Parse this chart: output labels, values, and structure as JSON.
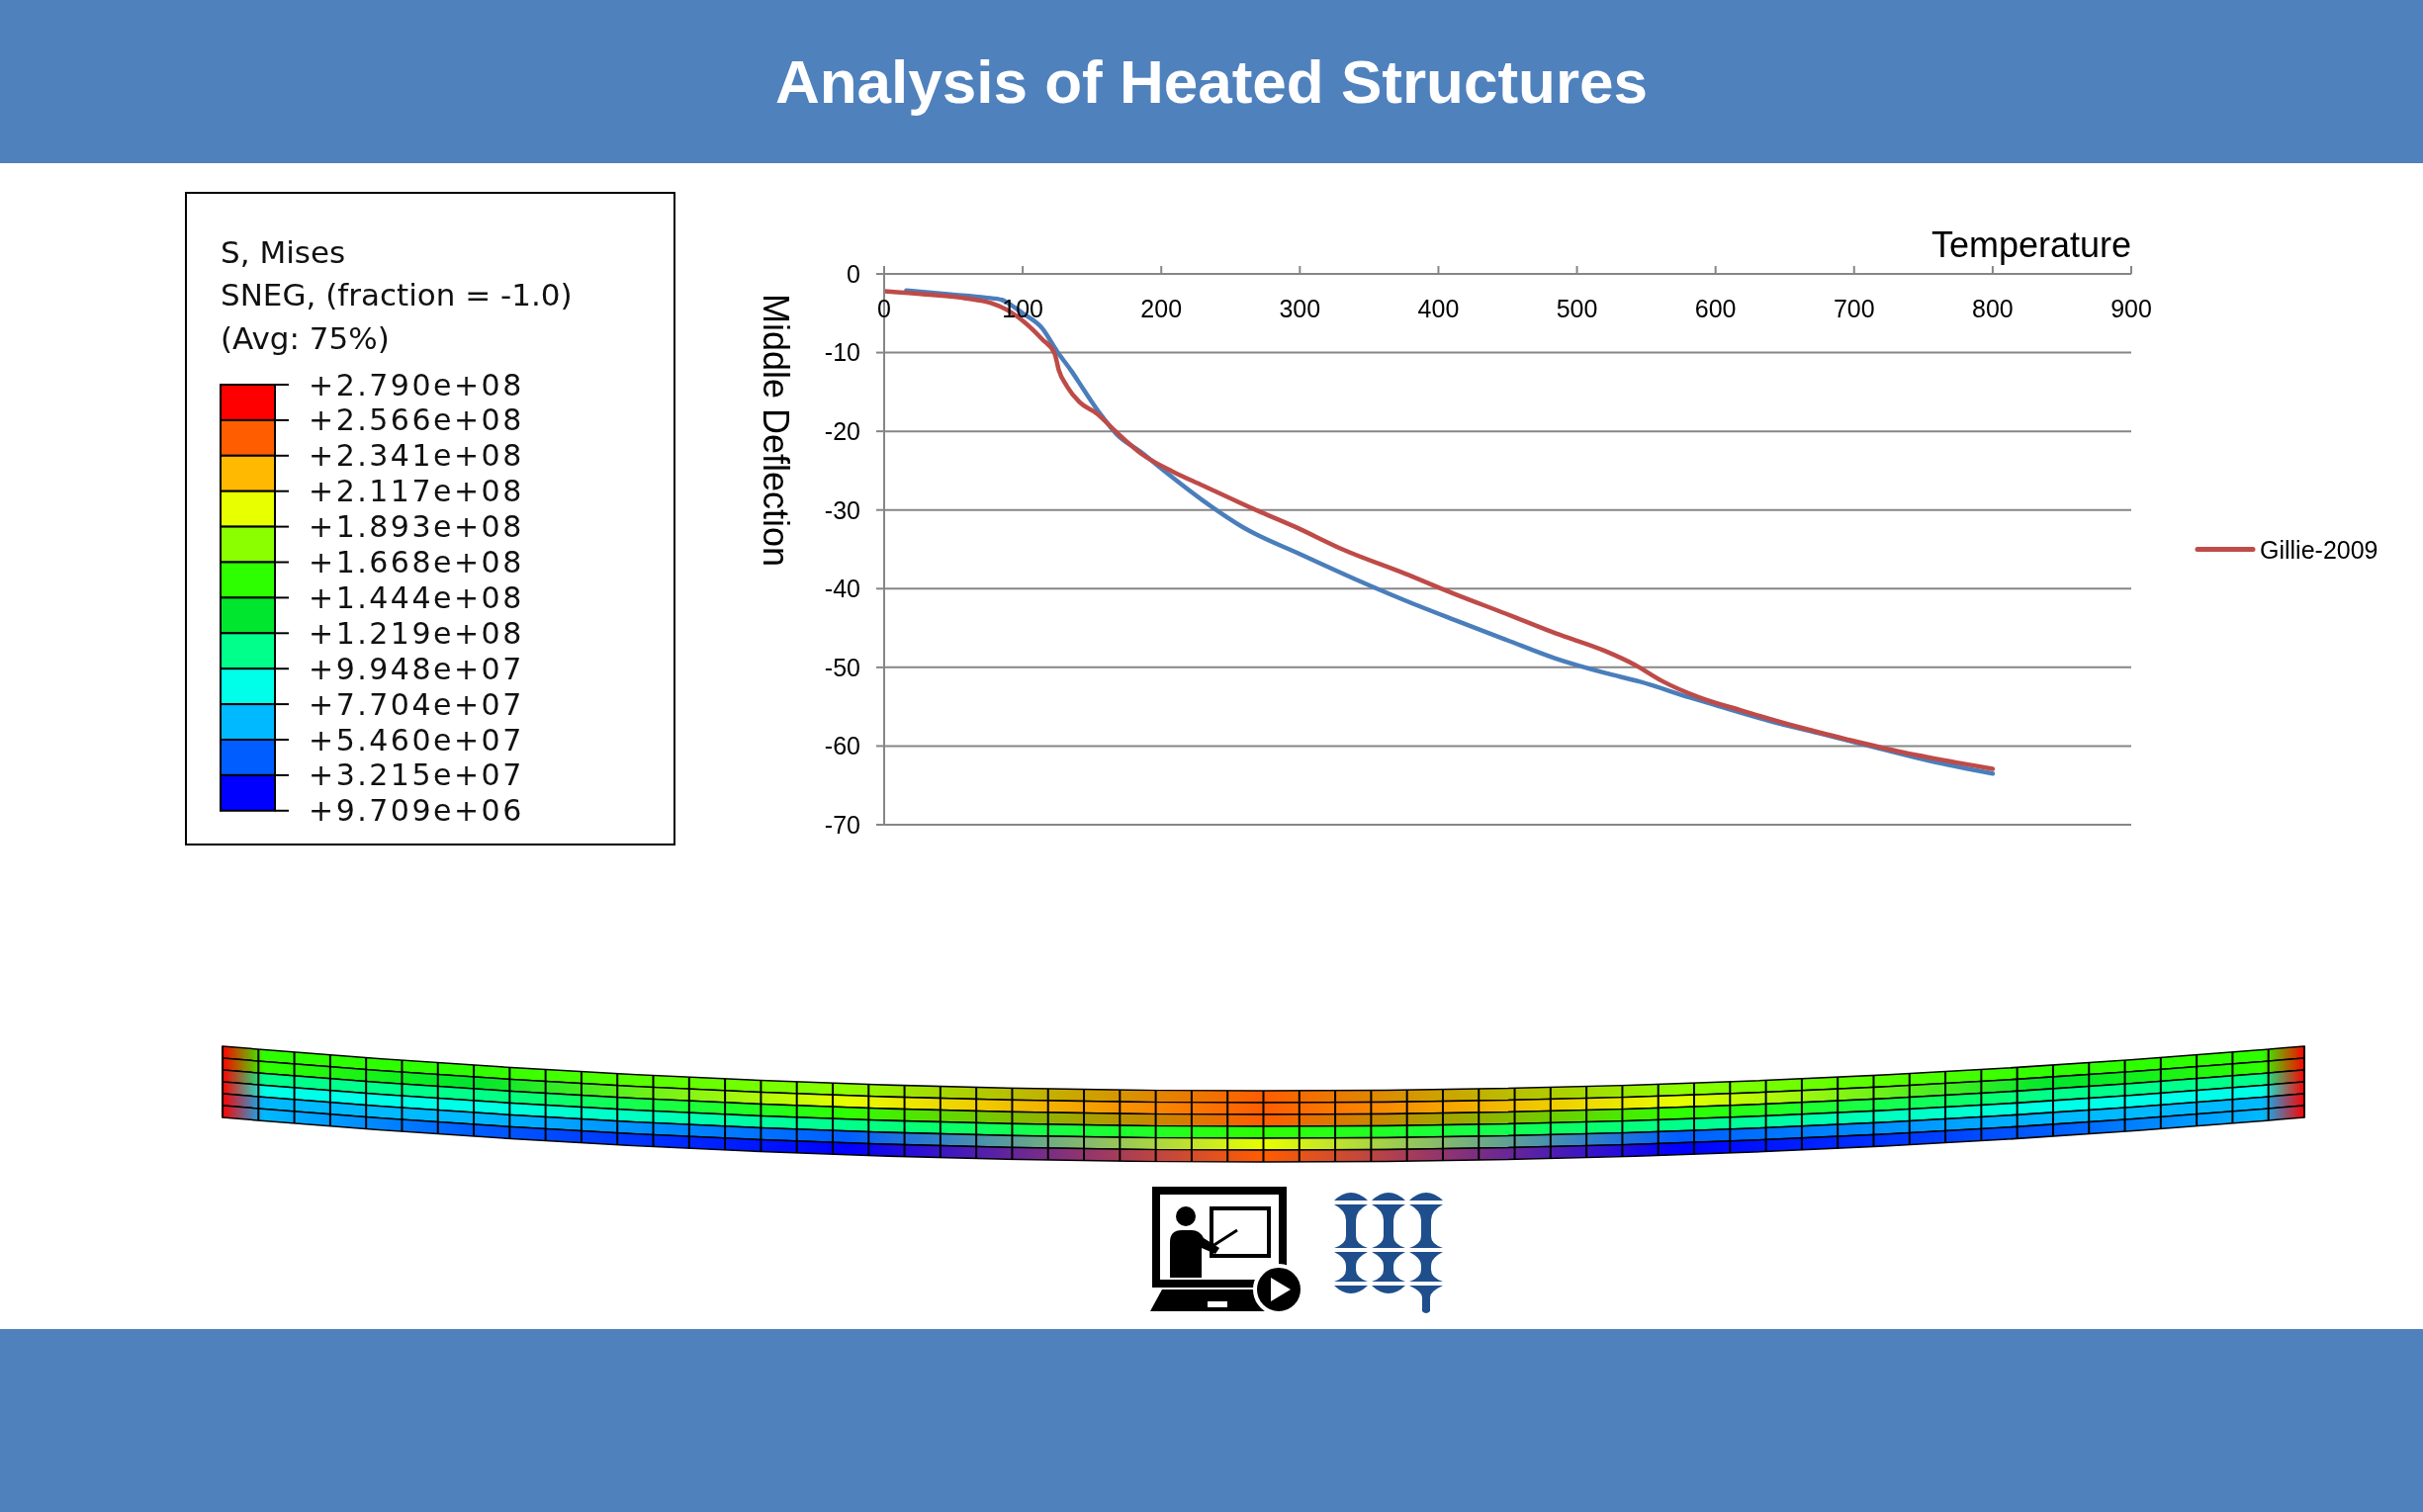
{
  "chart_data": [
    {
      "type": "other",
      "title": "S, Mises",
      "subtitle": "SNEG, (fraction = -1.0)",
      "annotations": [
        "(Avg: 75%)",
        "+2.790e+08",
        "+2.566e+08",
        "+2.341e+08",
        "+2.117e+08",
        "+1.893e+08",
        "+1.668e+08",
        "+1.444e+08",
        "+1.219e+08",
        "+9.948e+07",
        "+7.704e+07",
        "+5.460e+07",
        "+3.215e+07",
        "+9.709e+06"
      ]
    },
    {
      "type": "line",
      "title": "Analysis of Heated Structures",
      "xlabel": "Temperature",
      "ylabel": "Middle Deflection",
      "xlim": [
        0,
        900
      ],
      "ylim": [
        -70,
        0
      ],
      "xticks": [
        0,
        100,
        200,
        300,
        400,
        500,
        600,
        700,
        800,
        900
      ],
      "yticks": [
        0,
        -10,
        -20,
        -30,
        -40,
        -50,
        -60,
        -70
      ],
      "grid": "y",
      "legend": "right",
      "series": [
        {
          "color": "#4a7ebb",
          "x": [
            16,
            48,
            73,
            85,
            92,
            100,
            114,
            125,
            135,
            144,
            156,
            168,
            185,
            204,
            230,
            259,
            300,
            340,
            376,
            412,
            449,
            485,
            520,
            545,
            581,
            600,
            639,
            678,
            716,
            755,
            800
          ],
          "values": [
            -2.1,
            -2.6,
            -3.0,
            -3.3,
            -4.0,
            -5.0,
            -6.9,
            -9.9,
            -12.3,
            -14.7,
            -17.8,
            -20.4,
            -22.6,
            -25.3,
            -28.8,
            -32.2,
            -35.6,
            -38.8,
            -41.5,
            -44.0,
            -46.5,
            -48.9,
            -50.7,
            -51.8,
            -53.8,
            -54.8,
            -56.8,
            -58.5,
            -60.2,
            -61.9,
            -63.5
          ]
        },
        {
          "name": "Gillie-2009",
          "color": "#be4b48",
          "x": [
            0,
            30,
            59,
            77,
            89,
            101,
            114,
            123,
            126,
            132,
            141,
            154,
            167,
            186,
            208,
            230,
            267,
            296,
            332,
            376,
            412,
            449,
            485,
            520,
            542,
            561,
            588,
            619,
            658,
            696,
            735,
            774,
            800
          ],
          "values": [
            -2.2,
            -2.6,
            -3.1,
            -3.7,
            -4.6,
            -6.1,
            -8.3,
            -10.1,
            -12.2,
            -14.3,
            -16.3,
            -17.8,
            -20.0,
            -22.9,
            -25.1,
            -26.9,
            -29.9,
            -32.1,
            -35.1,
            -38.1,
            -40.7,
            -43.2,
            -45.7,
            -47.9,
            -49.7,
            -51.7,
            -53.8,
            -55.5,
            -57.5,
            -59.2,
            -60.8,
            -62.1,
            -62.9
          ]
        }
      ]
    }
  ]
}
